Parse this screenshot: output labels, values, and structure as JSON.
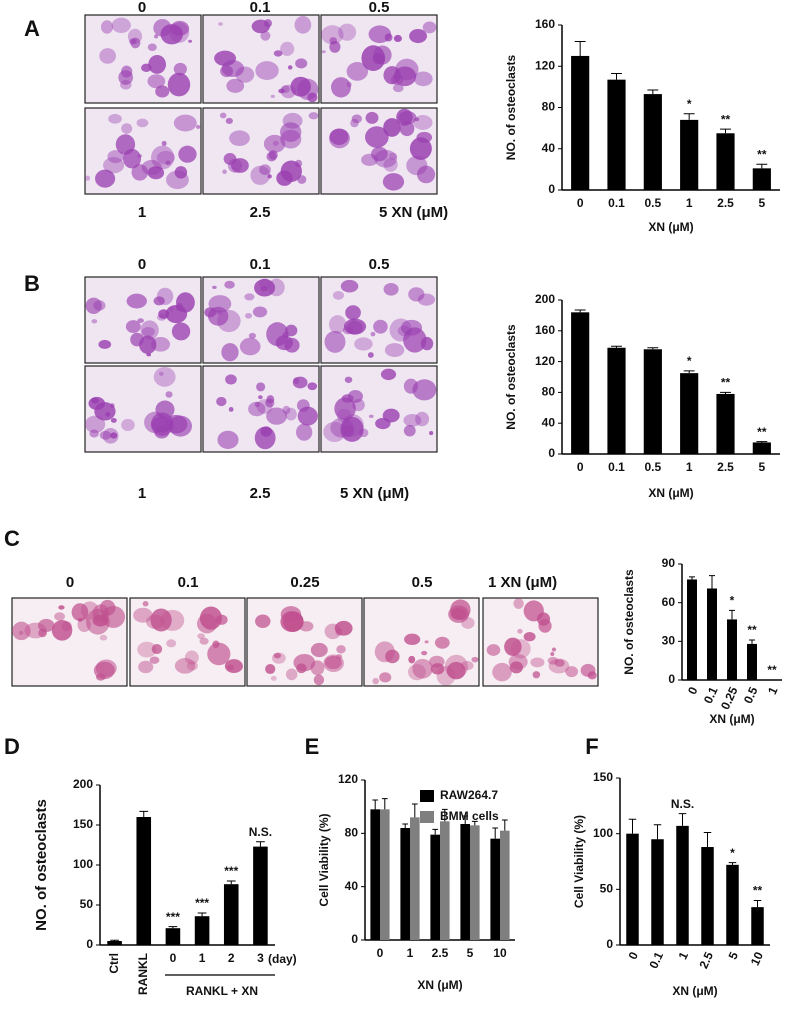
{
  "chart_data": [
    {
      "type": "bar",
      "panel": "A",
      "image_labels": [
        "0",
        "0.1",
        "0.5",
        "1",
        "2.5",
        "5 XN (μM)"
      ],
      "y_label": "NO. of  osteoclasts",
      "x_label": "XN (μM)",
      "categories": [
        "0",
        "0.1",
        "0.5",
        "1",
        "2.5",
        "5"
      ],
      "values": [
        130,
        107,
        93,
        68,
        55,
        21
      ],
      "errors": [
        14,
        6,
        4,
        6,
        4,
        4
      ],
      "annotations": [
        null,
        null,
        null,
        "*",
        "**",
        "**"
      ],
      "color": "#000000",
      "ylim": [
        0,
        160
      ],
      "yticks": [
        0,
        40,
        80,
        120,
        160
      ]
    },
    {
      "type": "bar",
      "panel": "B",
      "image_labels": [
        "0",
        "0.1",
        "0.5",
        "1",
        "2.5",
        "5  XN (μM)"
      ],
      "y_label": "NO. of  osteoclasts",
      "x_label": "XN (μM)",
      "categories": [
        "0",
        "0.1",
        "0.5",
        "1",
        "2.5",
        "5"
      ],
      "values": [
        184,
        138,
        136,
        105,
        78,
        15
      ],
      "errors": [
        3,
        2,
        2,
        3,
        2,
        1
      ],
      "annotations": [
        null,
        null,
        null,
        "*",
        "**",
        "**"
      ],
      "color": "#000000",
      "ylim": [
        0,
        200
      ],
      "yticks": [
        0,
        40,
        80,
        120,
        160,
        200
      ]
    },
    {
      "type": "bar",
      "panel": "C",
      "image_labels": [
        "0",
        "0.1",
        "0.25",
        "0.5",
        "1  XN (μM)"
      ],
      "y_label": "NO. of  osteoclasts",
      "x_label": "XN (μM)",
      "categories": [
        "0",
        "0.1",
        "0.25",
        "0.5",
        "1"
      ],
      "values": [
        78,
        71,
        47,
        28,
        0
      ],
      "errors": [
        2,
        10,
        7,
        3,
        0
      ],
      "annotations": [
        null,
        null,
        "*",
        "**",
        "**"
      ],
      "color": "#000000",
      "ylim": [
        0,
        90
      ],
      "yticks": [
        0,
        30,
        60,
        90
      ]
    },
    {
      "type": "bar",
      "panel": "D",
      "y_label": "NO. of  osteoclasts",
      "x_unit": "(day)",
      "group_label": "RANKL + XN",
      "categories": [
        "Ctrl",
        "RANKL",
        "0",
        "1",
        "2",
        "3"
      ],
      "values": [
        5,
        160,
        21,
        36,
        76,
        123
      ],
      "errors": [
        1,
        7,
        2,
        4,
        4,
        6
      ],
      "annotations": [
        null,
        null,
        "***",
        "***",
        "***",
        "N.S."
      ],
      "color": "#000000",
      "ylim": [
        0,
        200
      ],
      "yticks": [
        0,
        50,
        100,
        150,
        200
      ]
    },
    {
      "type": "grouped-bar",
      "panel": "E",
      "y_label": "Cell Viability (%)",
      "x_label": "XN (μM)",
      "categories": [
        "0",
        "1",
        "2.5",
        "5",
        "10"
      ],
      "series": [
        {
          "name": "RAW264.7",
          "color": "#000000",
          "values": [
            98,
            84,
            79,
            87,
            76
          ],
          "errors": [
            7,
            3,
            4,
            6,
            8
          ]
        },
        {
          "name": "BMM cells",
          "color": "#7f7f7f",
          "values": [
            98,
            92,
            89,
            86,
            82
          ],
          "errors": [
            8,
            10,
            9,
            3,
            8
          ]
        }
      ],
      "ylim": [
        0,
        120
      ],
      "yticks": [
        0,
        40,
        80,
        120
      ]
    },
    {
      "type": "bar",
      "panel": "F",
      "y_label": "Cell Viability (%)",
      "x_label": "XN (μM)",
      "categories": [
        "0",
        "0.1",
        "1",
        "2.5",
        "5",
        "10"
      ],
      "values": [
        100,
        95,
        107,
        88,
        72,
        34
      ],
      "errors": [
        13,
        13,
        11,
        13,
        2,
        6
      ],
      "annotations": [
        null,
        null,
        "N.S.",
        null,
        "*",
        "**"
      ],
      "color": "#000000",
      "ylim": [
        0,
        150
      ],
      "yticks": [
        0,
        50,
        100,
        150
      ]
    }
  ]
}
